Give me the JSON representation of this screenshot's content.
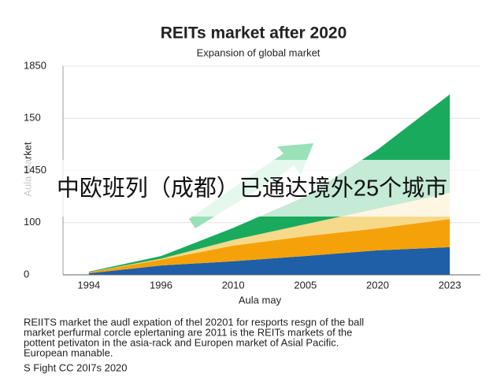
{
  "chart_data": {
    "type": "stacked-area",
    "title": "REITs market after 2020",
    "subtitle": "Expansion of global market",
    "y_label": "Aula Market",
    "x_label": "Aula may",
    "categories": [
      "1994",
      "1996",
      "2010",
      "2005",
      "2020",
      "2023"
    ],
    "series": [
      {
        "color": "#1f5fa8",
        "values": [
          3,
          18,
          26,
          36,
          47,
          53
        ]
      },
      {
        "color": "#f5a20a",
        "values": [
          2,
          11,
          30,
          38,
          42,
          54
        ]
      },
      {
        "color": "#f6d98a",
        "values": [
          0,
          2,
          11,
          23,
          38,
          50
        ]
      },
      {
        "color": "#1aaa5e",
        "values": [
          1,
          5,
          23,
          53,
          113,
          189
        ]
      }
    ],
    "ylim": [
      0,
      400
    ],
    "yticks": [
      0,
      100,
      {
        "value": 200,
        "label": "1450"
      },
      {
        "value": 300,
        "label": "150"
      },
      {
        "value": 400,
        "label": "1850"
      }
    ],
    "grid": true,
    "caption": [
      "REIITS market the audl expation of thel 20201 for resports resgn of the ball",
      "market perfurmal corcle eplertaning are 2011 is the REITs markets of the",
      "pottent petivaton in the asia-rack and Europen market of Asial Pacific.",
      "European manable."
    ],
    "footer": "S Fight CC 20I7s 2020",
    "banner": "中欧班列（成都）已通达境外25个城市"
  }
}
